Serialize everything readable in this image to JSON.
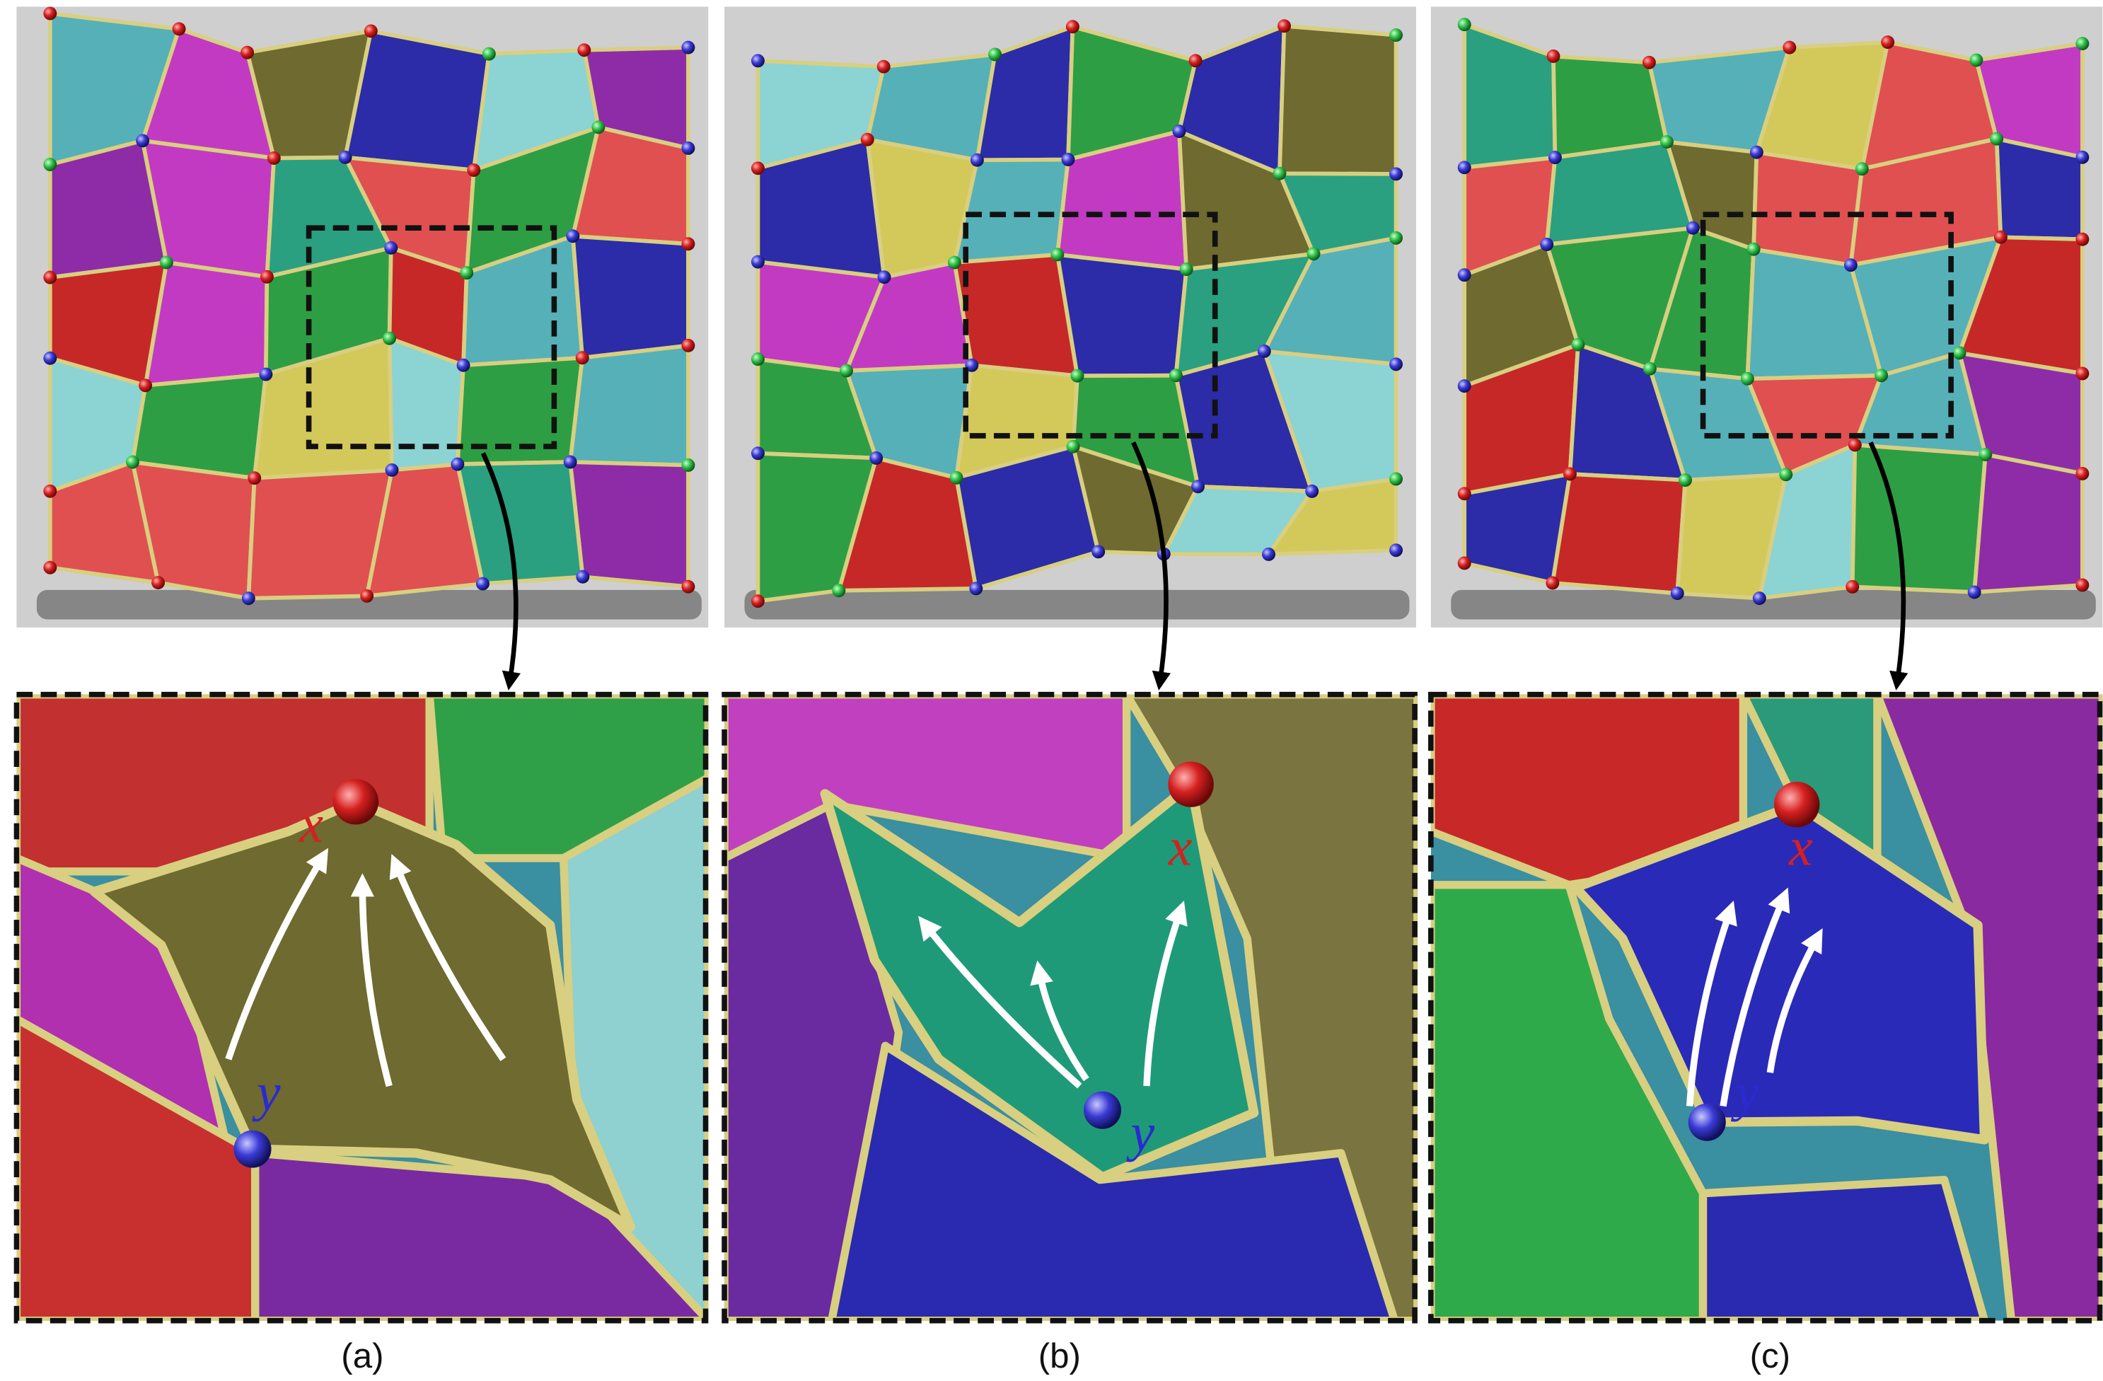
{
  "panels": [
    {
      "label": "(a)",
      "point_x": "x",
      "point_y": "y"
    },
    {
      "label": "(b)",
      "point_x": "x",
      "point_y": "y"
    },
    {
      "label": "(c)",
      "point_x": "x",
      "point_y": "y"
    }
  ]
}
